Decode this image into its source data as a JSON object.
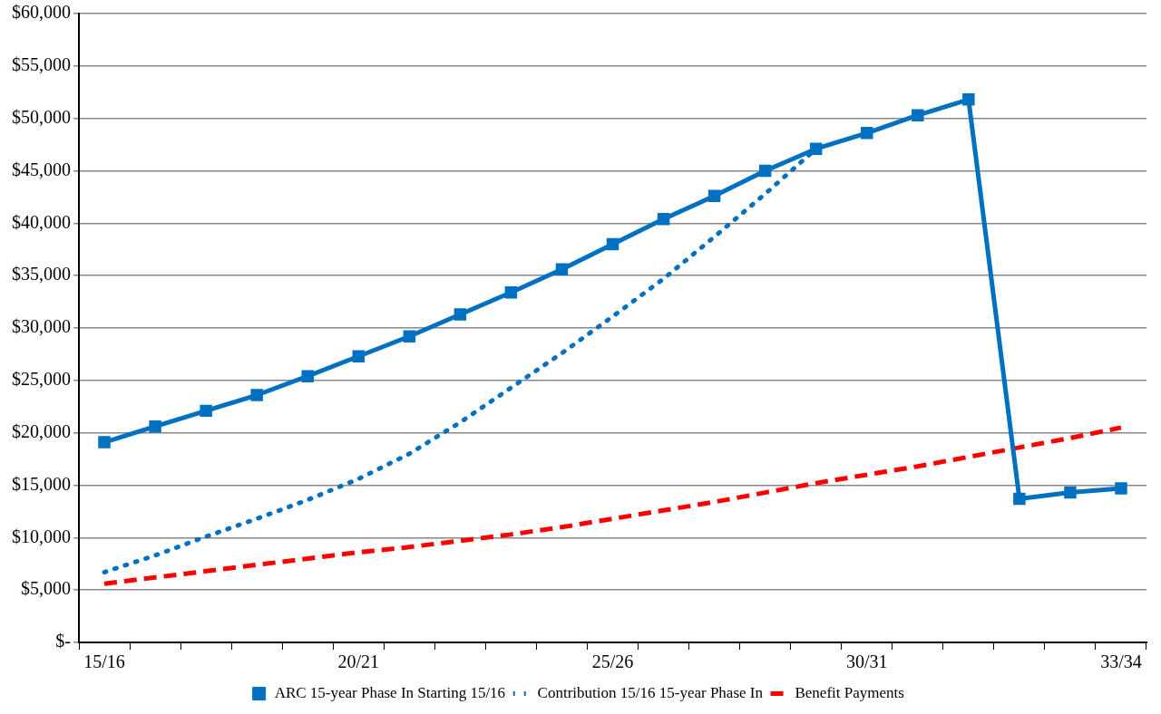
{
  "chart_data": {
    "type": "line",
    "categories": [
      "15/16",
      null,
      null,
      null,
      null,
      "20/21",
      null,
      null,
      null,
      null,
      "25/26",
      null,
      null,
      null,
      null,
      "30/31",
      null,
      null,
      null,
      null,
      "33/34"
    ],
    "series": [
      {
        "name": "ARC 15-year Phase In Starting 15/16",
        "color": "#0070c0",
        "marker": "square",
        "line_style": "solid",
        "values": [
          19100,
          20600,
          22100,
          23600,
          25400,
          27300,
          29200,
          31300,
          33400,
          35600,
          38000,
          40400,
          42600,
          45000,
          47100,
          48600,
          50300,
          51800,
          13700,
          14300,
          14700
        ]
      },
      {
        "name": "Contribution 15/16 15-year Phase In",
        "color": "#0070c0",
        "marker": "none",
        "line_style": "dotted",
        "values": [
          6700,
          8300,
          10100,
          11800,
          13600,
          15600,
          18000,
          21000,
          24300,
          27600,
          31100,
          34700,
          38700,
          42800,
          47100,
          null,
          null,
          null,
          null,
          null,
          null
        ]
      },
      {
        "name": "Benefit Payments",
        "color": "#ff0000",
        "marker": "none",
        "line_style": "dashed",
        "values": [
          5600,
          6200,
          6800,
          7400,
          8000,
          8600,
          9100,
          9700,
          10300,
          11000,
          11800,
          12600,
          13400,
          14300,
          15200,
          16000,
          16800,
          17700,
          18600,
          19500,
          20500
        ]
      }
    ],
    "ylim": [
      0,
      60000
    ],
    "yticks": [
      {
        "value": 0,
        "label": "$-"
      },
      {
        "value": 5000,
        "label": "$5,000"
      },
      {
        "value": 10000,
        "label": "$10,000"
      },
      {
        "value": 15000,
        "label": "$15,000"
      },
      {
        "value": 20000,
        "label": "$20,000"
      },
      {
        "value": 25000,
        "label": "$25,000"
      },
      {
        "value": 30000,
        "label": "$30,000"
      },
      {
        "value": 35000,
        "label": "$35,000"
      },
      {
        "value": 40000,
        "label": "$40,000"
      },
      {
        "value": 45000,
        "label": "$45,000"
      },
      {
        "value": 50000,
        "label": "$50,000"
      },
      {
        "value": 55000,
        "label": "$55,000"
      },
      {
        "value": 60000,
        "label": "$60,000"
      }
    ],
    "grid": "y",
    "legend": "bottom"
  }
}
